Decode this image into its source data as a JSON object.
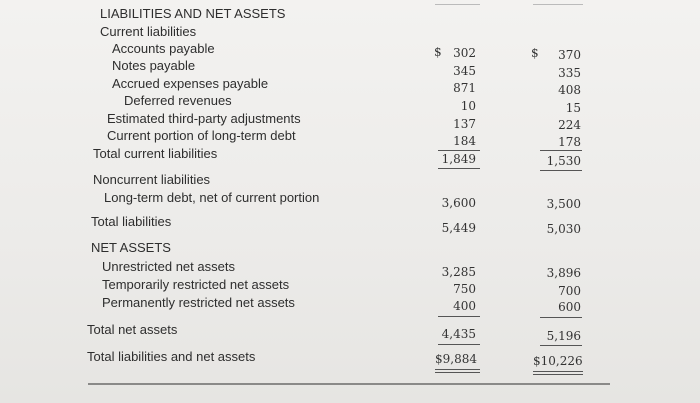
{
  "header": "LIABILITIES AND NET ASSETS",
  "current": {
    "heading": "Current liabilities",
    "items": [
      {
        "label": "Accounts payable",
        "y1": "302",
        "y2": "370"
      },
      {
        "label": "Notes payable",
        "y1": "345",
        "y2": "335"
      },
      {
        "label": "Accrued expenses payable",
        "y1": "871",
        "y2": "408"
      },
      {
        "label": "Deferred revenues",
        "y1": "10",
        "y2": "15"
      },
      {
        "label": "Estimated third-party adjustments",
        "y1": "137",
        "y2": "224"
      },
      {
        "label": "Current portion of long-term debt",
        "y1": "184",
        "y2": "178"
      }
    ],
    "total": {
      "label": "Total current liabilities",
      "y1": "1,849",
      "y2": "1,530"
    }
  },
  "noncurrent": {
    "heading": "Noncurrent liabilities",
    "item": {
      "label": "Long-term debt, net of current portion",
      "y1": "3,600",
      "y2": "3,500"
    }
  },
  "total_liabilities": {
    "label": "Total liabilities",
    "y1": "5,449",
    "y2": "5,030"
  },
  "net_assets": {
    "heading": "NET ASSETS",
    "items": [
      {
        "label": "Unrestricted net assets",
        "y1": "3,285",
        "y2": "3,896"
      },
      {
        "label": "Temporarily restricted net assets",
        "y1": "750",
        "y2": "700"
      },
      {
        "label": "Permanently restricted net assets",
        "y1": "400",
        "y2": "600"
      }
    ],
    "total": {
      "label": "Total net assets",
      "y1": "4,435",
      "y2": "5,196"
    }
  },
  "grand_total": {
    "label": "Total liabilities and net assets",
    "y1": "$9,884",
    "y2": "$10,226"
  },
  "currency_symbol": "$"
}
